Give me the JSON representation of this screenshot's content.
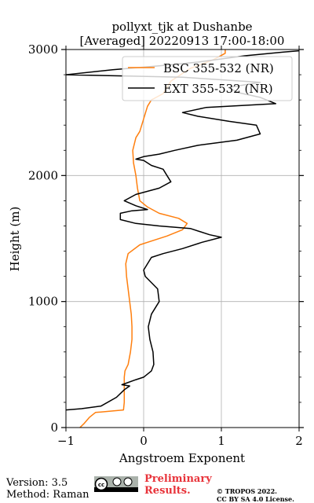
{
  "chart_data": {
    "type": "line",
    "title_line1": "pollyxt_tjk at Dushanbe",
    "title_line2": "[Averaged] 20220913 17:00-18:00",
    "xlabel": "Angstroem Exponent",
    "ylabel": "Height (m)",
    "xlim": [
      -1,
      2
    ],
    "ylim": [
      0,
      3000
    ],
    "xticks": [
      -1,
      0,
      1,
      2
    ],
    "yticks": [
      0,
      1000,
      2000,
      3000
    ],
    "grid": true,
    "legend_placement": "top-right",
    "series": [
      {
        "name": "BSC 355-532 (NR)",
        "color": "#ff7f0e",
        "points": [
          [
            -0.82,
            0
          ],
          [
            -0.77,
            30
          ],
          [
            -0.7,
            80
          ],
          [
            -0.62,
            120
          ],
          [
            -0.26,
            140
          ],
          [
            -0.25,
            200
          ],
          [
            -0.25,
            300
          ],
          [
            -0.25,
            400
          ],
          [
            -0.24,
            450
          ],
          [
            -0.2,
            500
          ],
          [
            -0.17,
            600
          ],
          [
            -0.15,
            700
          ],
          [
            -0.15,
            800
          ],
          [
            -0.16,
            900
          ],
          [
            -0.18,
            1000
          ],
          [
            -0.2,
            1100
          ],
          [
            -0.22,
            1200
          ],
          [
            -0.23,
            1300
          ],
          [
            -0.2,
            1380
          ],
          [
            -0.05,
            1450
          ],
          [
            0.1,
            1480
          ],
          [
            0.3,
            1520
          ],
          [
            0.5,
            1570
          ],
          [
            0.56,
            1620
          ],
          [
            0.45,
            1660
          ],
          [
            0.2,
            1700
          ],
          [
            0.05,
            1750
          ],
          [
            -0.05,
            1800
          ],
          [
            -0.08,
            1900
          ],
          [
            -0.1,
            2000
          ],
          [
            -0.13,
            2100
          ],
          [
            -0.14,
            2200
          ],
          [
            -0.1,
            2300
          ],
          [
            -0.05,
            2350
          ],
          [
            0.0,
            2450
          ],
          [
            0.05,
            2550
          ],
          [
            0.1,
            2600
          ],
          [
            0.25,
            2650
          ],
          [
            0.35,
            2750
          ],
          [
            0.6,
            2850
          ],
          [
            0.9,
            2920
          ],
          [
            1.05,
            2970
          ],
          [
            1.05,
            3000
          ]
        ]
      },
      {
        "name": "EXT 355-532 (NR)",
        "color": "#000000",
        "points": [
          [
            -1.0,
            140
          ],
          [
            -0.8,
            150
          ],
          [
            -0.55,
            170
          ],
          [
            -0.35,
            240
          ],
          [
            -0.25,
            300
          ],
          [
            -0.18,
            330
          ],
          [
            -0.28,
            340
          ],
          [
            -0.1,
            380
          ],
          [
            0.0,
            400
          ],
          [
            0.1,
            450
          ],
          [
            0.13,
            500
          ],
          [
            0.12,
            600
          ],
          [
            0.08,
            700
          ],
          [
            0.06,
            800
          ],
          [
            0.1,
            900
          ],
          [
            0.2,
            1000
          ],
          [
            0.18,
            1100
          ],
          [
            0.1,
            1150
          ],
          [
            0.02,
            1200
          ],
          [
            0.0,
            1250
          ],
          [
            0.05,
            1300
          ],
          [
            0.1,
            1350
          ],
          [
            0.25,
            1380
          ],
          [
            0.5,
            1420
          ],
          [
            0.75,
            1470
          ],
          [
            1.0,
            1510
          ],
          [
            0.85,
            1530
          ],
          [
            0.6,
            1580
          ],
          [
            0.2,
            1600
          ],
          [
            -0.1,
            1620
          ],
          [
            -0.3,
            1650
          ],
          [
            -0.3,
            1700
          ],
          [
            -0.15,
            1720
          ],
          [
            0.05,
            1730
          ],
          [
            -0.1,
            1760
          ],
          [
            -0.25,
            1800
          ],
          [
            -0.1,
            1850
          ],
          [
            0.2,
            1900
          ],
          [
            0.35,
            1950
          ],
          [
            0.3,
            2000
          ],
          [
            0.25,
            2050
          ],
          [
            0.1,
            2080
          ],
          [
            0.0,
            2120
          ],
          [
            -0.1,
            2130
          ],
          [
            0.0,
            2150
          ],
          [
            0.2,
            2170
          ],
          [
            0.4,
            2200
          ],
          [
            0.7,
            2240
          ],
          [
            1.2,
            2280
          ],
          [
            1.5,
            2330
          ],
          [
            1.45,
            2400
          ],
          [
            1.1,
            2430
          ],
          [
            0.7,
            2470
          ],
          [
            0.5,
            2500
          ],
          [
            0.8,
            2540
          ],
          [
            1.4,
            2560
          ],
          [
            1.7,
            2570
          ],
          [
            1.5,
            2620
          ],
          [
            1.2,
            2660
          ],
          [
            1.1,
            2700
          ],
          [
            1.5,
            2740
          ],
          [
            1.0,
            2760
          ],
          [
            0.5,
            2780
          ],
          [
            -0.2,
            2790
          ],
          [
            -1.0,
            2800
          ],
          [
            -0.4,
            2840
          ],
          [
            0.2,
            2870
          ],
          [
            0.7,
            2900
          ],
          [
            1.3,
            2950
          ],
          [
            1.8,
            2980
          ],
          [
            2.0,
            2990
          ]
        ]
      }
    ]
  },
  "footer": {
    "version": "Version: 3.5",
    "method": "Method: Raman",
    "preliminary_line1": "Preliminary",
    "preliminary_line2": "Results.",
    "copyright_line1": "© TROPOS 2022.",
    "copyright_line2": "CC BY SA 4.0 License."
  }
}
